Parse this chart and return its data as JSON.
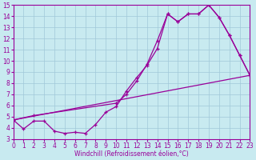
{
  "xlabel": "Windchill (Refroidissement éolien,°C)",
  "xlim": [
    0,
    23
  ],
  "ylim": [
    3,
    15
  ],
  "xticks": [
    0,
    1,
    2,
    3,
    4,
    5,
    6,
    7,
    8,
    9,
    10,
    11,
    12,
    13,
    14,
    15,
    16,
    17,
    18,
    19,
    20,
    21,
    22,
    23
  ],
  "yticks": [
    3,
    4,
    5,
    6,
    7,
    8,
    9,
    10,
    11,
    12,
    13,
    14,
    15
  ],
  "bg_color": "#c8eaf0",
  "line_color": "#990099",
  "line1_x": [
    0,
    1,
    2,
    3,
    4,
    5,
    6,
    7,
    8,
    9,
    10,
    11,
    12,
    13,
    14,
    15,
    16,
    17,
    18,
    19,
    20,
    21,
    22,
    23
  ],
  "line1_y": [
    4.7,
    3.9,
    4.6,
    4.6,
    3.7,
    3.5,
    3.6,
    3.5,
    4.3,
    5.4,
    5.9,
    7.3,
    8.5,
    9.6,
    11.1,
    14.2,
    13.5,
    14.2,
    14.2,
    15.0,
    13.9,
    12.3,
    10.5,
    8.7
  ],
  "line2_x": [
    0,
    23
  ],
  "line2_y": [
    4.7,
    8.7
  ],
  "line3_x": [
    0,
    2,
    10,
    11,
    12,
    13,
    14,
    15,
    16,
    17,
    18,
    19,
    20,
    21,
    22,
    23
  ],
  "line3_y": [
    4.7,
    5.1,
    6.2,
    7.0,
    8.2,
    9.7,
    11.8,
    14.2,
    13.5,
    14.2,
    14.2,
    15.0,
    13.9,
    12.3,
    10.5,
    8.7
  ],
  "grid_color": "#a0c8d8",
  "tick_fontsize": 5.5,
  "label_fontsize": 5.5,
  "linewidth": 0.9,
  "markersize": 3.5,
  "markeredgewidth": 0.9
}
